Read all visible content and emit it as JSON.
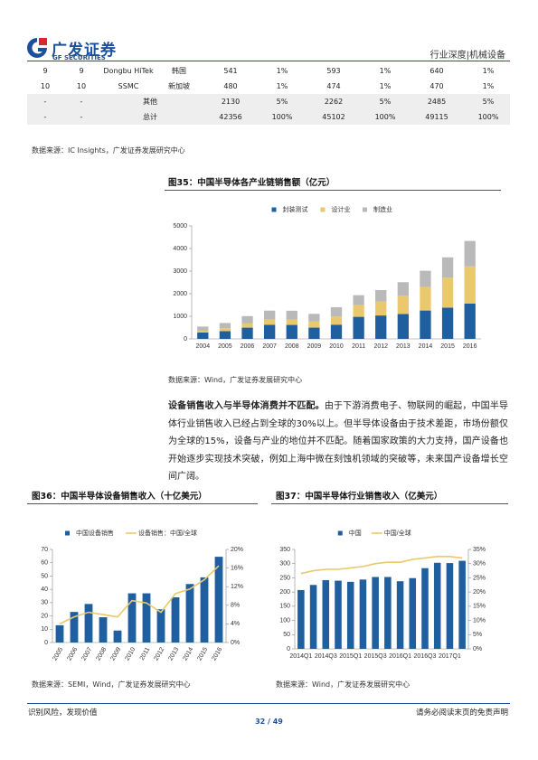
{
  "header": {
    "logo_cn": "广发证券",
    "logo_en": "GF SECURITIES",
    "right": "行业深度|机械设备"
  },
  "table": {
    "rows": [
      [
        "9",
        "9",
        "Dongbu HiTek",
        "韩国",
        "541",
        "1%",
        "593",
        "1%",
        "640",
        "1%"
      ],
      [
        "10",
        "10",
        "SSMC",
        "新加坡",
        "480",
        "1%",
        "474",
        "1%",
        "470",
        "1%"
      ],
      [
        "-",
        "-",
        "其他",
        "2130",
        "5%",
        "2262",
        "5%",
        "2485",
        "5%"
      ],
      [
        "-",
        "-",
        "总计",
        "42356",
        "100%",
        "45102",
        "100%",
        "49115",
        "100%"
      ]
    ]
  },
  "table_source": "数据来源：IC Insights，广发证券发展研究中心",
  "paragraph": {
    "bold": "设备销售收入与半导体消费并不匹配。",
    "text": "由于下游消费电子、物联网的崛起，中国半导体行业销售收入已经占到全球的30%以上。但半导体设备由于技术差距，市场份额仅为全球的15%，设备与产业的地位并不匹配。随着国家政策的大力支持，国产设备也开始逐步实现技术突破，例如上海中微在刻蚀机领域的突破等，未来国产设备增长空间广阔。"
  },
  "chart_data": [
    {
      "type": "bar",
      "stacked": true,
      "title": "图35：中国半导体各产业链销售额（亿元）",
      "categories": [
        "2004",
        "2005",
        "2006",
        "2007",
        "2008",
        "2009",
        "2010",
        "2011",
        "2012",
        "2013",
        "2014",
        "2015",
        "2016"
      ],
      "series": [
        {
          "name": "封装测试",
          "color": "#1f5f9f",
          "values": [
            282,
            344,
            497,
            628,
            618,
            498,
            630,
            976,
            1036,
            1099,
            1256,
            1384,
            1564
          ]
        },
        {
          "name": "设计业",
          "color": "#e9c86e",
          "values": [
            82,
            125,
            187,
            225,
            235,
            270,
            364,
            527,
            622,
            809,
            1047,
            1325,
            1644
          ]
        },
        {
          "name": "制造业",
          "color": "#b9b9b9",
          "values": [
            181,
            233,
            323,
            398,
            393,
            341,
            409,
            431,
            501,
            601,
            712,
            901,
            1127
          ]
        }
      ],
      "ylim": [
        0,
        5000
      ],
      "yticks": [
        0,
        1000,
        2000,
        3000,
        4000,
        5000
      ],
      "source": "数据来源：Wind，广发证券发展研究中心"
    },
    {
      "type": "bar_line",
      "title": "图36：中国半导体设备销售收入（十亿美元）",
      "categories": [
        "2005",
        "2006",
        "2007",
        "2008",
        "2009",
        "2010",
        "2011",
        "2012",
        "2013",
        "2014",
        "2015",
        "2016"
      ],
      "series": [
        {
          "name": "中国设备销售",
          "type": "bar",
          "color": "#1f5f9f",
          "values": [
            13,
            23,
            29,
            19,
            9,
            37,
            37,
            25,
            34,
            44,
            49,
            64.5
          ]
        },
        {
          "name": "设备销售：中国/全球",
          "type": "line",
          "axis": "y2",
          "color": "#e9c86e",
          "values": [
            4,
            5.5,
            6.5,
            6,
            5.5,
            9,
            8.5,
            6.5,
            10.5,
            11.5,
            13.5,
            16.5
          ]
        }
      ],
      "ylim": [
        0,
        70
      ],
      "yticks": [
        0,
        10,
        20,
        30,
        40,
        50,
        60,
        70
      ],
      "y2lim": [
        0,
        20
      ],
      "y2ticks": [
        {
          "value": 0,
          "label": "0%"
        },
        {
          "value": 4,
          "label": "4%"
        },
        {
          "value": 8,
          "label": "8%"
        },
        {
          "value": 12,
          "label": "12%"
        },
        {
          "value": 16,
          "label": "16%"
        },
        {
          "value": 20,
          "label": "20%"
        }
      ],
      "rotate_labels": true,
      "source": "数据来源：SEMI，Wind，广发证券发展研究中心"
    },
    {
      "type": "bar_line",
      "title": "图37：中国半导体行业销售收入（亿美元）",
      "categories": [
        "2014Q1",
        null,
        "2014Q3",
        null,
        "2015Q1",
        null,
        "2015Q3",
        null,
        "2016Q1",
        null,
        "2016Q3",
        null,
        "2017Q1",
        null
      ],
      "series": [
        {
          "name": "中国",
          "type": "bar",
          "color": "#1f5f9f",
          "values": [
            207,
            225,
            242,
            240,
            236,
            244,
            253,
            253,
            238,
            249,
            284,
            303,
            302,
            310
          ]
        },
        {
          "name": "中国/全球",
          "type": "line",
          "axis": "y2",
          "color": "#e9c86e",
          "values": [
            26.5,
            27.5,
            28,
            28,
            28.5,
            29,
            30,
            30.5,
            30.5,
            31.5,
            32,
            32.5,
            32.5,
            32
          ]
        }
      ],
      "ylim": [
        0,
        350
      ],
      "yticks": [
        0,
        50,
        100,
        150,
        200,
        250,
        300,
        350
      ],
      "y2lim": [
        0,
        35
      ],
      "y2ticks": [
        {
          "value": 0,
          "label": "0%"
        },
        {
          "value": 5,
          "label": "5%"
        },
        {
          "value": 10,
          "label": "10%"
        },
        {
          "value": 15,
          "label": "15%"
        },
        {
          "value": 20,
          "label": "20%"
        },
        {
          "value": 25,
          "label": "25%"
        },
        {
          "value": 30,
          "label": "30%"
        },
        {
          "value": 35,
          "label": "35%"
        }
      ],
      "source": "数据来源：Wind，广发证券发展研究中心"
    }
  ],
  "footer": {
    "left": "识别风险，发现价值",
    "right": "请务必阅读末页的免责声明",
    "page": "32 / 49"
  }
}
